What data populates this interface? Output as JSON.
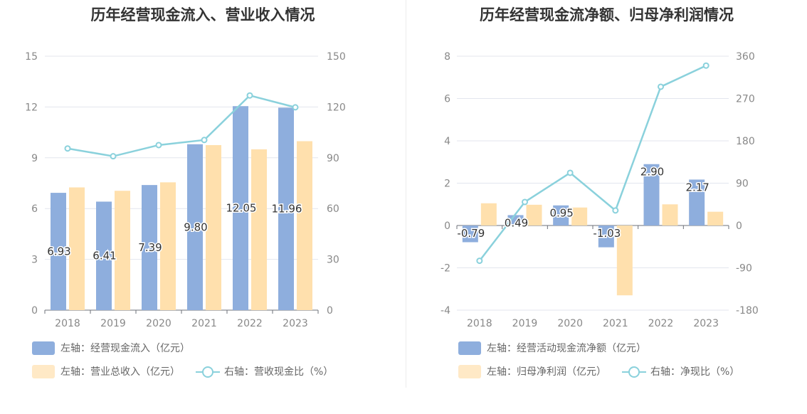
{
  "charts": [
    {
      "title": "历年经营现金流入、营业收入情况",
      "legend": [
        {
          "label": "左轴：经营现金流入（亿元）",
          "kind": "bar",
          "color": "#8eaedd"
        },
        {
          "label": "左轴：营业总收入（亿元）",
          "kind": "bar",
          "color": "#ffe0ad"
        },
        {
          "label": "右轴：营收现金比（%）",
          "kind": "line",
          "color": "#8ad1dc"
        }
      ]
    },
    {
      "title": "历年经营现金流净额、归母净利润情况",
      "legend": [
        {
          "label": "左轴：经营活动现金流净额（亿元）",
          "kind": "bar",
          "color": "#8eaedd"
        },
        {
          "label": "左轴：归母净利润（亿元）",
          "kind": "bar",
          "color": "#ffe0ad"
        },
        {
          "label": "右轴：净现比（%）",
          "kind": "line",
          "color": "#8ad1dc"
        }
      ]
    }
  ],
  "chart_data": [
    {
      "type": "bar",
      "title": "历年经营现金流入、营业收入情况",
      "categories": [
        "2018",
        "2019",
        "2020",
        "2021",
        "2022",
        "2023"
      ],
      "left_axis": {
        "ylim": [
          0,
          15
        ],
        "ticks": [
          "0",
          "3",
          "6",
          "9",
          "12",
          "15"
        ]
      },
      "right_axis": {
        "ylim": [
          0,
          150
        ],
        "ticks": [
          "0",
          "30",
          "60",
          "90",
          "120",
          "150"
        ]
      },
      "series": [
        {
          "name": "左轴：经营现金流入（亿元）",
          "type": "bar",
          "axis": "left",
          "color": "#8eaedd",
          "values": [
            6.93,
            6.41,
            7.39,
            9.8,
            12.05,
            11.96
          ],
          "labels": [
            "6.93",
            "6.41",
            "7.39",
            "9.80",
            "12.05",
            "11.96"
          ]
        },
        {
          "name": "左轴：营业总收入（亿元）",
          "type": "bar",
          "axis": "left",
          "color": "#ffe0ad",
          "values": [
            7.25,
            7.05,
            7.55,
            9.75,
            9.5,
            9.98
          ]
        },
        {
          "name": "右轴：营收现金比（%）",
          "type": "line",
          "axis": "right",
          "color": "#8ad1dc",
          "values": [
            95.5,
            90.9,
            97.5,
            100.5,
            126.8,
            119.8
          ]
        }
      ],
      "grid": true,
      "legend_position": "bottom"
    },
    {
      "type": "bar",
      "title": "历年经营现金流净额、归母净利润情况",
      "categories": [
        "2018",
        "2019",
        "2020",
        "2021",
        "2022",
        "2023"
      ],
      "left_axis": {
        "ylim": [
          -4,
          8
        ],
        "ticks": [
          "-4",
          "-2",
          "0",
          "2",
          "4",
          "6",
          "8"
        ]
      },
      "right_axis": {
        "ylim": [
          -180,
          360
        ],
        "ticks": [
          "-180",
          "-90",
          "0",
          "90",
          "180",
          "270",
          "360"
        ]
      },
      "series": [
        {
          "name": "左轴：经营活动现金流净额（亿元）",
          "type": "bar",
          "axis": "left",
          "color": "#8eaedd",
          "values": [
            -0.79,
            0.49,
            0.95,
            -1.03,
            2.9,
            2.17
          ],
          "labels": [
            "-0.79",
            "0.49",
            "0.95",
            "-1.03",
            "2.90",
            "2.17"
          ]
        },
        {
          "name": "左轴：归母净利润（亿元）",
          "type": "bar",
          "axis": "left",
          "color": "#ffe0ad",
          "values": [
            1.05,
            0.98,
            0.85,
            -3.3,
            1.0,
            0.65
          ]
        },
        {
          "name": "右轴：净现比（%）",
          "type": "line",
          "axis": "right",
          "color": "#8ad1dc",
          "values": [
            -75,
            50,
            112,
            32,
            295,
            340
          ]
        }
      ],
      "grid": true,
      "legend_position": "bottom"
    }
  ]
}
